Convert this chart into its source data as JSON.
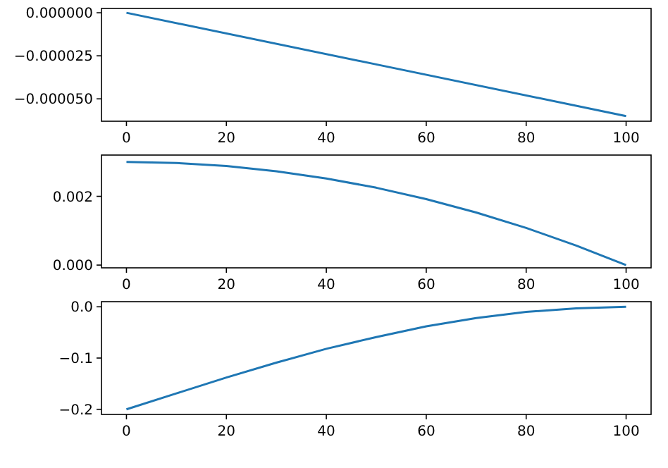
{
  "chart_data": [
    {
      "type": "line",
      "x": [
        0,
        50,
        100
      ],
      "series": [
        {
          "color": "#1f77b4",
          "values": [
            0,
            -3e-05,
            -6e-05
          ]
        }
      ],
      "xlim": [
        -5,
        105
      ],
      "ylim": [
        -6.3e-05,
        2.5e-06
      ],
      "xticks": [
        0,
        20,
        40,
        60,
        80,
        100
      ],
      "yticks": [
        {
          "value": 0,
          "label": "0.000000"
        },
        {
          "value": -2.5e-05,
          "label": "−0.000025"
        },
        {
          "value": -5e-05,
          "label": "−0.000050"
        }
      ]
    },
    {
      "type": "line",
      "x": [
        0,
        10,
        20,
        30,
        40,
        50,
        60,
        70,
        80,
        90,
        100
      ],
      "series": [
        {
          "color": "#1f77b4",
          "values": [
            0.003,
            0.00297,
            0.00288,
            0.00273,
            0.00252,
            0.00225,
            0.00192,
            0.00153,
            0.00108,
            0.00057,
            0
          ]
        }
      ],
      "xlim": [
        -5,
        105
      ],
      "ylim": [
        -8e-05,
        0.0032
      ],
      "xticks": [
        0,
        20,
        40,
        60,
        80,
        100
      ],
      "yticks": [
        {
          "value": 0,
          "label": "0.000"
        },
        {
          "value": 0.002,
          "label": "0.002"
        }
      ]
    },
    {
      "type": "line",
      "x": [
        0,
        10,
        20,
        30,
        40,
        50,
        60,
        70,
        80,
        90,
        100
      ],
      "series": [
        {
          "color": "#1f77b4",
          "values": [
            -0.2,
            -0.169,
            -0.138,
            -0.109,
            -0.082,
            -0.059,
            -0.038,
            -0.022,
            -0.01,
            -0.003,
            0
          ]
        }
      ],
      "xlim": [
        -5,
        105
      ],
      "ylim": [
        -0.21,
        0.01
      ],
      "xticks": [
        0,
        20,
        40,
        60,
        80,
        100
      ],
      "yticks": [
        {
          "value": 0,
          "label": "0.0"
        },
        {
          "value": -0.1,
          "label": "−0.1"
        },
        {
          "value": -0.2,
          "label": "−0.2"
        }
      ]
    }
  ]
}
